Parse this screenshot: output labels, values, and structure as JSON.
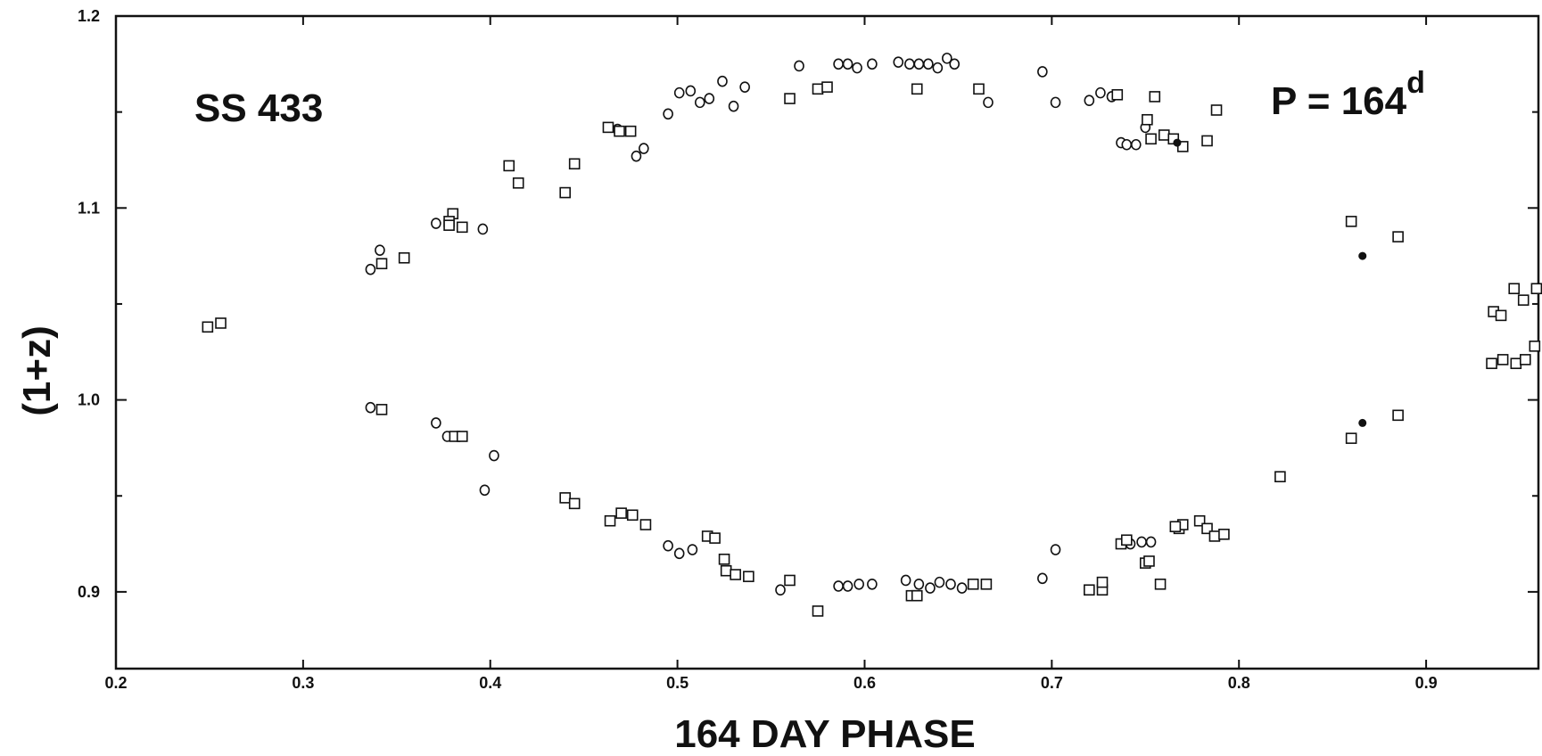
{
  "chart_data": {
    "type": "scatter",
    "xlabel": "164 DAY PHASE",
    "ylabel": "(1+z)",
    "xlim": [
      0.2,
      0.96
    ],
    "ylim": [
      0.86,
      1.2
    ],
    "xticks": [
      "0.2",
      "0.3",
      "0.4",
      "0.5",
      "0.6",
      "0.7",
      "0.8",
      "0.9"
    ],
    "yticks": [
      "0.9",
      "1.0",
      "1.1",
      "1.2"
    ],
    "annotations": {
      "object": "SS 433",
      "period": "P = 164",
      "period_sup": "d"
    },
    "series": [
      {
        "marker": "circle",
        "x": [
          0.336,
          0.341,
          0.371,
          0.396,
          0.468,
          0.478,
          0.482,
          0.495,
          0.501,
          0.507,
          0.512,
          0.517,
          0.524,
          0.53,
          0.536,
          0.565,
          0.586,
          0.591,
          0.596,
          0.604,
          0.618,
          0.624,
          0.629,
          0.634,
          0.639,
          0.644,
          0.648,
          0.666,
          0.695,
          0.702,
          0.72,
          0.726,
          0.732,
          0.737,
          0.74,
          0.745,
          0.75,
          0.336,
          0.371,
          0.377,
          0.397,
          0.402,
          0.495,
          0.501,
          0.508,
          0.555,
          0.586,
          0.591,
          0.597,
          0.604,
          0.622,
          0.629,
          0.635,
          0.64,
          0.646,
          0.652,
          0.695,
          0.702,
          0.742,
          0.748,
          0.753
        ],
        "y": [
          1.068,
          1.078,
          1.092,
          1.089,
          1.141,
          1.127,
          1.131,
          1.149,
          1.16,
          1.161,
          1.155,
          1.157,
          1.166,
          1.153,
          1.163,
          1.174,
          1.175,
          1.175,
          1.173,
          1.175,
          1.176,
          1.175,
          1.175,
          1.175,
          1.173,
          1.178,
          1.175,
          1.155,
          1.171,
          1.155,
          1.156,
          1.16,
          1.158,
          1.134,
          1.133,
          1.133,
          1.142,
          0.996,
          0.988,
          0.981,
          0.953,
          0.971,
          0.924,
          0.92,
          0.922,
          0.901,
          0.903,
          0.903,
          0.904,
          0.904,
          0.906,
          0.904,
          0.902,
          0.905,
          0.904,
          0.902,
          0.907,
          0.922,
          0.925,
          0.926,
          0.926
        ]
      },
      {
        "marker": "square",
        "x": [
          0.249,
          0.256,
          0.342,
          0.354,
          0.38,
          0.378,
          0.378,
          0.385,
          0.41,
          0.415,
          0.44,
          0.445,
          0.463,
          0.469,
          0.475,
          0.56,
          0.575,
          0.58,
          0.628,
          0.661,
          0.735,
          0.751,
          0.753,
          0.755,
          0.76,
          0.765,
          0.77,
          0.783,
          0.788,
          0.86,
          0.885,
          0.936,
          0.94,
          0.947,
          0.952,
          0.958,
          0.935,
          0.941,
          0.948,
          0.953,
          0.959,
          0.86,
          0.885,
          0.822,
          0.342,
          0.381,
          0.385,
          0.44,
          0.445,
          0.464,
          0.47,
          0.476,
          0.483,
          0.516,
          0.52,
          0.525,
          0.526,
          0.531,
          0.538,
          0.56,
          0.575,
          0.625,
          0.628,
          0.658,
          0.665,
          0.72,
          0.727,
          0.727,
          0.737,
          0.74,
          0.75,
          0.752,
          0.768,
          0.77,
          0.779,
          0.783,
          0.787,
          0.792,
          0.766,
          0.758
        ],
        "y": [
          1.038,
          1.04,
          1.071,
          1.074,
          1.097,
          1.093,
          1.091,
          1.09,
          1.122,
          1.113,
          1.108,
          1.123,
          1.142,
          1.14,
          1.14,
          1.157,
          1.162,
          1.163,
          1.162,
          1.162,
          1.159,
          1.146,
          1.136,
          1.158,
          1.138,
          1.136,
          1.132,
          1.135,
          1.151,
          1.093,
          1.085,
          1.046,
          1.044,
          1.058,
          1.052,
          1.028,
          1.019,
          1.021,
          1.019,
          1.021,
          1.058,
          0.98,
          0.992,
          0.96,
          0.995,
          0.981,
          0.981,
          0.949,
          0.946,
          0.937,
          0.941,
          0.94,
          0.935,
          0.929,
          0.928,
          0.917,
          0.911,
          0.909,
          0.908,
          0.906,
          0.89,
          0.898,
          0.898,
          0.904,
          0.904,
          0.901,
          0.901,
          0.905,
          0.925,
          0.927,
          0.915,
          0.916,
          0.933,
          0.935,
          0.937,
          0.933,
          0.929,
          0.93,
          0.934,
          0.904
        ]
      },
      {
        "marker": "filled-circle",
        "x": [
          0.767,
          0.866,
          0.866
        ],
        "y": [
          1.134,
          1.075,
          0.988
        ]
      }
    ]
  }
}
